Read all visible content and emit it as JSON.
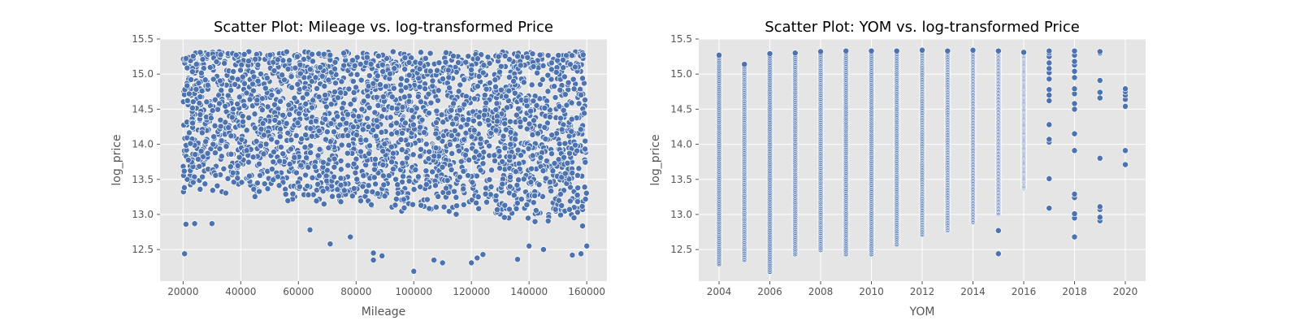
{
  "chart_data": [
    {
      "type": "scatter",
      "title": "Scatter Plot: Mileage vs. log-transformed Price",
      "xlabel": "Mileage",
      "ylabel": "log_price",
      "xlim": [
        12000,
        167000
      ],
      "ylim": [
        12.05,
        15.5
      ],
      "xticks": [
        20000,
        40000,
        60000,
        80000,
        100000,
        120000,
        140000,
        160000
      ],
      "yticks": [
        12.5,
        13.0,
        13.5,
        14.0,
        14.5,
        15.0,
        15.5
      ],
      "grid": true,
      "marker_color": "#4c72b0",
      "background_color": "#e5e5e5",
      "x_range": [
        20000,
        160000
      ],
      "y_range": [
        12.19,
        15.35
      ],
      "dense_band": {
        "y_top": 15.32,
        "y_bottom_min": 12.95,
        "y_bottom_max": 13.45
      },
      "outliers": [
        {
          "x": 20500,
          "y": 12.44
        },
        {
          "x": 21000,
          "y": 12.86
        },
        {
          "x": 24000,
          "y": 12.87
        },
        {
          "x": 30000,
          "y": 12.87
        },
        {
          "x": 64000,
          "y": 12.78
        },
        {
          "x": 71000,
          "y": 12.58
        },
        {
          "x": 78000,
          "y": 12.68
        },
        {
          "x": 86000,
          "y": 12.35
        },
        {
          "x": 86000,
          "y": 12.45
        },
        {
          "x": 89000,
          "y": 12.41
        },
        {
          "x": 100000,
          "y": 12.19
        },
        {
          "x": 107000,
          "y": 12.35
        },
        {
          "x": 110000,
          "y": 12.31
        },
        {
          "x": 120000,
          "y": 12.31
        },
        {
          "x": 122000,
          "y": 12.38
        },
        {
          "x": 124000,
          "y": 12.43
        },
        {
          "x": 136000,
          "y": 12.36
        },
        {
          "x": 140000,
          "y": 12.55
        },
        {
          "x": 145000,
          "y": 12.5
        },
        {
          "x": 155000,
          "y": 12.42
        },
        {
          "x": 158000,
          "y": 12.44
        },
        {
          "x": 160000,
          "y": 12.55
        }
      ]
    },
    {
      "type": "scatter",
      "title": "Scatter Plot: YOM vs. log-transformed Price",
      "xlabel": "YOM",
      "ylabel": "log_price",
      "xlim": [
        2003.2,
        2020.8
      ],
      "ylim": [
        12.05,
        15.5
      ],
      "xticks": [
        2004,
        2006,
        2008,
        2010,
        2012,
        2014,
        2016,
        2018,
        2020
      ],
      "yticks": [
        12.5,
        13.0,
        13.5,
        14.0,
        14.5,
        15.0,
        15.5
      ],
      "grid": true,
      "marker_color": "#4c72b0",
      "background_color": "#e5e5e5",
      "columns": [
        {
          "year": 2004,
          "min": 12.3,
          "max": 15.27
        },
        {
          "year": 2005,
          "min": 12.36,
          "max": 15.14
        },
        {
          "year": 2006,
          "min": 12.19,
          "max": 15.29
        },
        {
          "year": 2007,
          "min": 12.44,
          "max": 15.3
        },
        {
          "year": 2008,
          "min": 12.5,
          "max": 15.32
        },
        {
          "year": 2009,
          "min": 12.44,
          "max": 15.33
        },
        {
          "year": 2010,
          "min": 12.44,
          "max": 15.33
        },
        {
          "year": 2011,
          "min": 12.58,
          "max": 15.33
        },
        {
          "year": 2012,
          "min": 12.72,
          "max": 15.34
        },
        {
          "year": 2013,
          "min": 12.78,
          "max": 15.33
        },
        {
          "year": 2014,
          "min": 12.9,
          "max": 15.34
        },
        {
          "year": 2015,
          "min": 13.02,
          "max": 15.33,
          "extra": [
            12.77,
            12.44
          ]
        },
        {
          "year": 2016,
          "min": 13.38,
          "max": 15.31
        },
        {
          "year": 2017,
          "points": [
            13.09,
            13.51,
            14.03,
            14.07,
            14.28,
            14.62,
            14.7,
            14.78,
            14.93,
            15.02,
            15.08,
            15.16,
            15.25,
            15.3,
            15.33
          ]
        },
        {
          "year": 2018,
          "points": [
            12.68,
            12.95,
            13.01,
            13.24,
            13.29,
            13.91,
            14.15,
            14.5,
            14.58,
            14.72,
            14.79,
            14.95,
            15.04,
            15.13,
            15.18,
            15.27,
            15.33
          ]
        },
        {
          "year": 2019,
          "points": [
            12.91,
            12.96,
            13.07,
            13.11,
            13.8,
            14.66,
            14.74,
            14.91,
            15.3,
            15.32
          ]
        },
        {
          "year": 2020,
          "points": [
            13.71,
            13.91,
            14.54,
            14.64,
            14.7,
            14.75,
            14.79
          ]
        }
      ]
    }
  ]
}
